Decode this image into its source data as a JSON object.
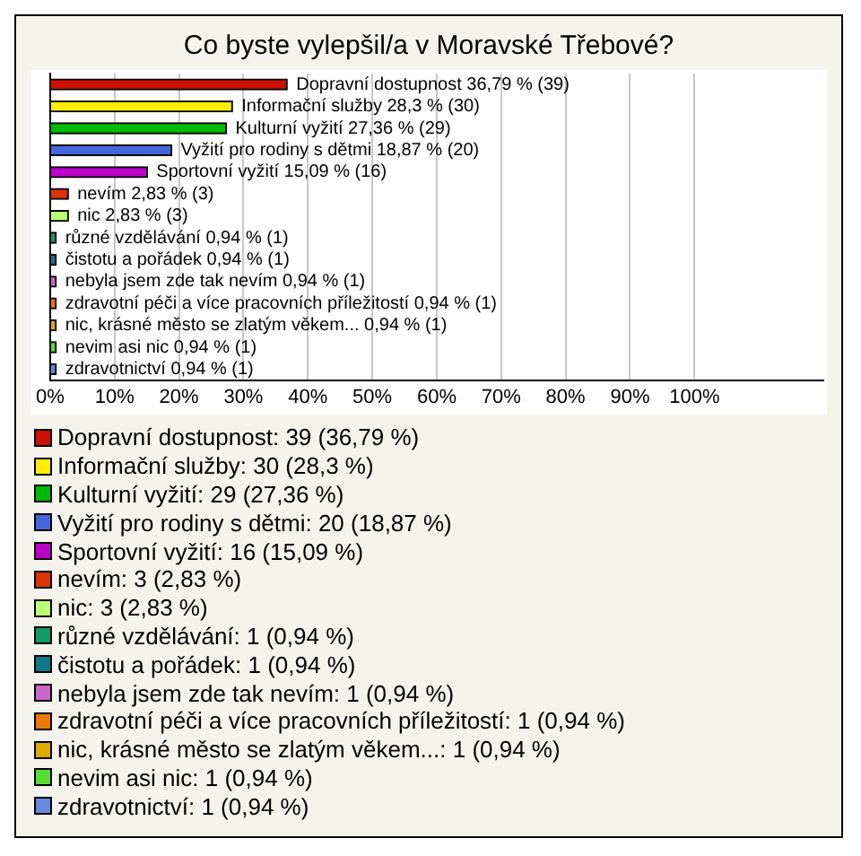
{
  "chart_data": {
    "type": "bar",
    "orientation": "horizontal",
    "title": "Co byste vylepšil/a v Moravské Třebové?",
    "categories": [
      "Dopravní dostupnost",
      "Informační služby",
      "Kulturní vyžití",
      "Vyžití pro rodiny s dětmi",
      "Sportovní vyžití",
      "nevím",
      "nic",
      "různé vzdělávání",
      "čistotu a pořádek",
      "nebyla jsem zde tak nevím",
      "zdravotní péči a více pracovních příležitostí",
      "nic, krásné město se zlatým věkem...",
      "nevim asi nic",
      "zdravotnictví"
    ],
    "values": [
      36.79,
      28.3,
      27.36,
      18.87,
      15.09,
      2.83,
      2.83,
      0.94,
      0.94,
      0.94,
      0.94,
      0.94,
      0.94,
      0.94
    ],
    "colors": [
      "#cc1100",
      "#ffee00",
      "#00bb00",
      "#4466dd",
      "#bb00cc",
      "#dd3300",
      "#bbff77",
      "#119966",
      "#117788",
      "#cc66cc",
      "#ee7700",
      "#ddaa00",
      "#55dd33",
      "#6688dd"
    ],
    "value_labels": [
      "36,79 % (39)",
      "28,3 % (30)",
      "27,36 % (29)",
      "18,87 % (20)",
      "15,09 % (16)",
      "2,83 % (3)",
      "2,83 % (3)",
      "0,94 % (1)",
      "0,94 % (1)",
      "0,94 % (1)",
      "0,94 % (1)",
      "0,94 % (1)",
      "0,94 % (1)",
      "0,94 % (1)"
    ],
    "xlim": [
      0,
      120
    ],
    "xticks": [
      {
        "value": 0,
        "label": "0%"
      },
      {
        "value": 10,
        "label": "10%"
      },
      {
        "value": 20,
        "label": "20%"
      },
      {
        "value": 30,
        "label": "30%"
      },
      {
        "value": 40,
        "label": "40%"
      },
      {
        "value": 50,
        "label": "50%"
      },
      {
        "value": 60,
        "label": "60%"
      },
      {
        "value": 70,
        "label": "70%"
      },
      {
        "value": 80,
        "label": "80%"
      },
      {
        "value": 90,
        "label": "90%"
      },
      {
        "value": 100,
        "label": "100%"
      }
    ],
    "grid": "x",
    "tick_labels": "x",
    "annotations": [
      "Dopravní dostupnost: 39 (36,79 %)",
      "Informační služby: 30 (28,3 %)",
      "Kulturní vyžití: 29 (27,36 %)",
      "Vyžití pro rodiny s dětmi: 20 (18,87 %)",
      "Sportovní vyžití: 16 (15,09 %)",
      "nevím: 3 (2,83 %)",
      "nic: 3 (2,83 %)",
      "různé vzdělávání: 1 (0,94 %)",
      "čistotu a pořádek: 1 (0,94 %)",
      "nebyla jsem zde tak nevím: 1 (0,94 %)",
      "zdravotní péči a více pracovních příležitostí: 1 (0,94 %)",
      "nic, krásné město se zlatým věkem...: 1 (0,94 %)",
      "nevim asi nic: 1 (0,94 %)",
      "zdravotnictví: 1 (0,94 %)"
    ]
  }
}
